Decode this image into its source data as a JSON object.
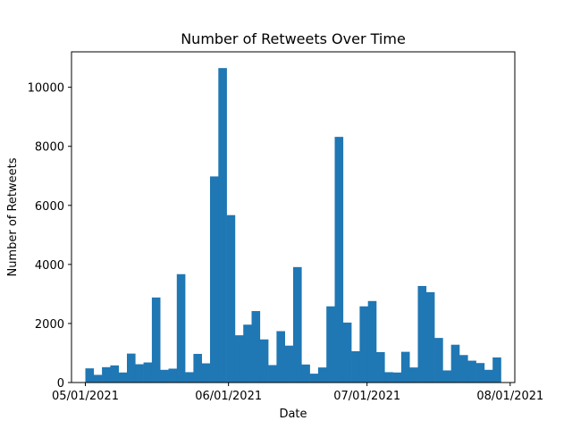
{
  "chart_data": {
    "type": "bar",
    "title": "Number of Retweets Over Time",
    "xlabel": "Date",
    "ylabel": "Number of Retweets",
    "grid": false,
    "legend": "none",
    "bar_color": "#1f77b4",
    "x_range_days": [
      -3,
      93
    ],
    "ylim": [
      0,
      11200
    ],
    "bin_width_days": 1.8,
    "bin_start_days": 0,
    "values": [
      480,
      260,
      520,
      580,
      340,
      980,
      620,
      680,
      2880,
      430,
      470,
      3670,
      350,
      970,
      650,
      6980,
      10650,
      5670,
      1600,
      1960,
      2420,
      1460,
      590,
      1740,
      1250,
      3910,
      610,
      300,
      510,
      2580,
      8320,
      2030,
      1060,
      2580,
      2760,
      1030,
      350,
      340,
      1040,
      510,
      3270,
      3060,
      1510,
      410,
      1280,
      930,
      740,
      660,
      430,
      850
    ],
    "x_ticks": [
      {
        "label": "05/01/2021",
        "day": 0
      },
      {
        "label": "06/01/2021",
        "day": 31
      },
      {
        "label": "07/01/2021",
        "day": 61
      },
      {
        "label": "08/01/2021",
        "day": 92
      }
    ],
    "y_ticks": [
      {
        "label": "0",
        "value": 0
      },
      {
        "label": "2000",
        "value": 2000
      },
      {
        "label": "4000",
        "value": 4000
      },
      {
        "label": "6000",
        "value": 6000
      },
      {
        "label": "8000",
        "value": 8000
      },
      {
        "label": "10000",
        "value": 10000
      }
    ]
  }
}
